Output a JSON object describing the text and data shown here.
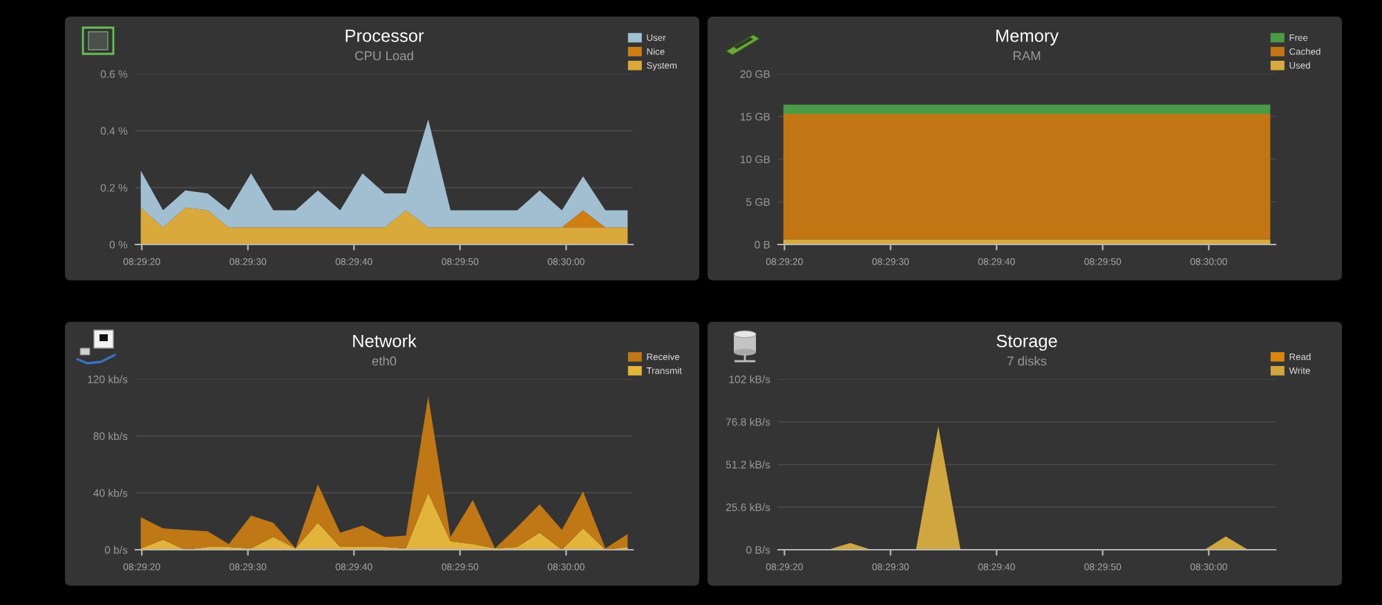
{
  "chart_data": [
    {
      "type": "area",
      "title": "Processor",
      "subtitle": "CPU Load",
      "stacked": true,
      "grid": "y",
      "legend": "top right",
      "x": [
        8.488861,
        8.489444,
        8.490028,
        8.490611,
        8.491167,
        8.49175,
        8.492333,
        8.492917,
        8.4935,
        8.494083,
        8.494667,
        8.49525,
        8.495806,
        8.496389,
        8.496972,
        8.497556,
        8.498139,
        8.498722,
        8.499306,
        8.499889,
        8.500444,
        8.501028,
        8.501611
      ],
      "xlim": [
        8.488722,
        8.50175
      ],
      "xticks": [
        {
          "value": 8.488889,
          "label": "08:29:20"
        },
        {
          "value": 8.491667,
          "label": "08:29:30"
        },
        {
          "value": 8.494444,
          "label": "08:29:40"
        },
        {
          "value": 8.497222,
          "label": "08:29:50"
        },
        {
          "value": 8.5,
          "label": "08:30:00"
        }
      ],
      "ylim": [
        0,
        0.6
      ],
      "yticks": [
        {
          "value": 0,
          "label": "0 %"
        },
        {
          "value": 0.2,
          "label": "0.2 %"
        },
        {
          "value": 0.4,
          "label": "0.4 %"
        },
        {
          "value": 0.6,
          "label": "0.6 %"
        }
      ],
      "series": [
        {
          "name": "System",
          "color": "#d9a93c",
          "values": [
            0.13,
            0.06,
            0.13,
            0.12,
            0.06,
            0.06,
            0.06,
            0.06,
            0.06,
            0.06,
            0.06,
            0.06,
            0.12,
            0.06,
            0.06,
            0.06,
            0.06,
            0.06,
            0.06,
            0.06,
            0.06,
            0.06,
            0.06
          ]
        },
        {
          "name": "Nice",
          "color": "#cf7e12",
          "values": [
            0,
            0,
            0,
            0,
            0,
            0,
            0,
            0,
            0,
            0,
            0,
            0,
            0,
            0,
            0,
            0,
            0,
            0,
            0,
            0,
            0.06,
            0,
            0
          ]
        },
        {
          "name": "User",
          "color": "#a2bfd2",
          "values": [
            0.13,
            0.06,
            0.06,
            0.06,
            0.06,
            0.19,
            0.06,
            0.06,
            0.13,
            0.06,
            0.19,
            0.12,
            0.06,
            0.38,
            0.06,
            0.06,
            0.06,
            0.06,
            0.13,
            0.06,
            0.12,
            0.06,
            0.06
          ]
        }
      ]
    },
    {
      "type": "area",
      "title": "Memory",
      "subtitle": "RAM",
      "stacked": true,
      "grid": "y",
      "legend": "top right",
      "x": [
        8.488861,
        8.489444,
        8.490028,
        8.490611,
        8.491167,
        8.49175,
        8.492333,
        8.492917,
        8.4935,
        8.494083,
        8.494667,
        8.49525,
        8.495806,
        8.496389,
        8.496972,
        8.497556,
        8.498139,
        8.498722,
        8.499306,
        8.499889,
        8.500444,
        8.501028,
        8.501611
      ],
      "xlim": [
        8.488722,
        8.50175
      ],
      "xticks": [
        {
          "value": 8.488889,
          "label": "08:29:20"
        },
        {
          "value": 8.491667,
          "label": "08:29:30"
        },
        {
          "value": 8.494444,
          "label": "08:29:40"
        },
        {
          "value": 8.497222,
          "label": "08:29:50"
        },
        {
          "value": 8.5,
          "label": "08:30:00"
        }
      ],
      "ylim": [
        0,
        20
      ],
      "yticks": [
        {
          "value": 0,
          "label": "0 B"
        },
        {
          "value": 5,
          "label": "5 GB"
        },
        {
          "value": 10,
          "label": "10 GB"
        },
        {
          "value": 15,
          "label": "15 GB"
        },
        {
          "value": 20,
          "label": "20 GB"
        }
      ],
      "series": [
        {
          "name": "Used",
          "color": "#d8aa42",
          "values": [
            0.6,
            0.6,
            0.6,
            0.6,
            0.6,
            0.6,
            0.6,
            0.6,
            0.6,
            0.6,
            0.6,
            0.6,
            0.6,
            0.6,
            0.6,
            0.6,
            0.6,
            0.6,
            0.6,
            0.6,
            0.6,
            0.6,
            0.6
          ]
        },
        {
          "name": "Cached",
          "color": "#c27613",
          "values": [
            14.7,
            14.7,
            14.7,
            14.7,
            14.7,
            14.7,
            14.7,
            14.7,
            14.7,
            14.7,
            14.7,
            14.7,
            14.7,
            14.7,
            14.7,
            14.7,
            14.7,
            14.7,
            14.7,
            14.7,
            14.7,
            14.7,
            14.7
          ]
        },
        {
          "name": "Free",
          "color": "#4b9a47",
          "values": [
            1.1,
            1.1,
            1.1,
            1.1,
            1.1,
            1.1,
            1.1,
            1.1,
            1.1,
            1.1,
            1.1,
            1.1,
            1.1,
            1.1,
            1.1,
            1.1,
            1.1,
            1.1,
            1.1,
            1.1,
            1.1,
            1.1,
            1.1
          ]
        }
      ]
    },
    {
      "type": "area",
      "title": "Network",
      "subtitle": "eth0",
      "stacked": true,
      "grid": "y",
      "legend": "top right",
      "x": [
        8.488861,
        8.489444,
        8.490028,
        8.490611,
        8.491167,
        8.49175,
        8.492333,
        8.492917,
        8.4935,
        8.494083,
        8.494667,
        8.49525,
        8.495806,
        8.496389,
        8.496972,
        8.497556,
        8.498139,
        8.498722,
        8.499306,
        8.499889,
        8.500444,
        8.501028,
        8.501611
      ],
      "xlim": [
        8.488722,
        8.50175
      ],
      "xticks": [
        {
          "value": 8.488889,
          "label": "08:29:20"
        },
        {
          "value": 8.491667,
          "label": "08:29:30"
        },
        {
          "value": 8.494444,
          "label": "08:29:40"
        },
        {
          "value": 8.497222,
          "label": "08:29:50"
        },
        {
          "value": 8.5,
          "label": "08:30:00"
        }
      ],
      "ylim": [
        0,
        120
      ],
      "yticks": [
        {
          "value": 0,
          "label": "0 b/s"
        },
        {
          "value": 40,
          "label": "40 kb/s"
        },
        {
          "value": 80,
          "label": "80 kb/s"
        },
        {
          "value": 120,
          "label": "120 kb/s"
        }
      ],
      "series": [
        {
          "name": "Transmit",
          "color": "#e2b43c",
          "values": [
            1,
            7,
            0,
            2,
            2,
            1,
            9,
            1,
            19,
            2,
            2,
            2,
            1,
            40,
            6,
            4,
            1,
            2,
            12,
            0,
            15,
            0,
            2
          ]
        },
        {
          "name": "Receive",
          "color": "#bf7815",
          "values": [
            22,
            8,
            14,
            11,
            2,
            23,
            10,
            0,
            27,
            10,
            15,
            7,
            9,
            68,
            3,
            31,
            0,
            14,
            20,
            14,
            26,
            1,
            9
          ]
        }
      ]
    },
    {
      "type": "area",
      "title": "Storage",
      "subtitle": "7 disks",
      "stacked": true,
      "grid": "y",
      "legend": "top right",
      "x": [
        8.488861,
        8.489444,
        8.490028,
        8.490611,
        8.491167,
        8.49175,
        8.492333,
        8.492917,
        8.4935,
        8.494083,
        8.494667,
        8.49525,
        8.495806,
        8.496389,
        8.496972,
        8.497556,
        8.498139,
        8.498722,
        8.499306,
        8.499889,
        8.500444,
        8.501028,
        8.501611
      ],
      "xlim": [
        8.488722,
        8.50175
      ],
      "xticks": [
        {
          "value": 8.488889,
          "label": "08:29:20"
        },
        {
          "value": 8.491667,
          "label": "08:29:30"
        },
        {
          "value": 8.494444,
          "label": "08:29:40"
        },
        {
          "value": 8.497222,
          "label": "08:29:50"
        },
        {
          "value": 8.5,
          "label": "08:30:00"
        }
      ],
      "ylim": [
        0,
        102.4
      ],
      "yticks": [
        {
          "value": 0,
          "label": "0 B/s"
        },
        {
          "value": 25.6,
          "label": "25.6 kB/s"
        },
        {
          "value": 51.2,
          "label": "51.2 kB/s"
        },
        {
          "value": 76.8,
          "label": "76.8 kB/s"
        },
        {
          "value": 102.4,
          "label": "102 kB/s"
        }
      ],
      "series": [
        {
          "name": "Write",
          "color": "#cfa640",
          "values": [
            0,
            0,
            0,
            4,
            0,
            0,
            0,
            74,
            0,
            0,
            0,
            0,
            0,
            0,
            0,
            0,
            0,
            0,
            0,
            0,
            8,
            0,
            0
          ]
        },
        {
          "name": "Read",
          "color": "#d9860f",
          "values": [
            null,
            null,
            null,
            null,
            null,
            null,
            null,
            null,
            null,
            null,
            null,
            null,
            null,
            null,
            null,
            null,
            null,
            null,
            null,
            null,
            null,
            null,
            null
          ]
        }
      ]
    }
  ]
}
